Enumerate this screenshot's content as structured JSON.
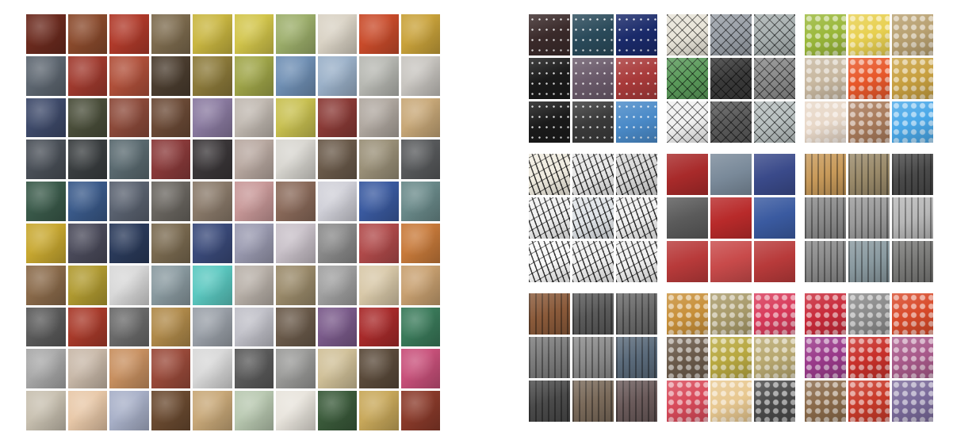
{
  "left_grid": {
    "rows": [
      [
        "#6b2a1e",
        "#8a4a2c",
        "#b03a2a",
        "#7d6b4e",
        "#c9b640",
        "#d2c54a",
        "#9cae6a",
        "#d9d2c4",
        "#c94b2a",
        "#c9a23a"
      ],
      [
        "#5d6670",
        "#a03a2e",
        "#b0503a",
        "#4b3d2f",
        "#8c7a3a",
        "#9fa548",
        "#6f8fb4",
        "#9ab0c8",
        "#b7b8b2",
        "#c8c5c0"
      ],
      [
        "#3e4a6a",
        "#4a4e3a",
        "#8c4a3a",
        "#6b4a36",
        "#8a7aa0",
        "#c0b8b0",
        "#c8c050",
        "#8a3a36",
        "#b0a8a0",
        "#c8a878"
      ],
      [
        "#4a5058",
        "#3a3e40",
        "#5a6a70",
        "#8a3a3a",
        "#3a3638",
        "#b8a8a0",
        "#d8d6d0",
        "#6a5a4a",
        "#9a9078",
        "#585a5c"
      ],
      [
        "#3a5a4a",
        "#3a5a8a",
        "#5a6270",
        "#6a6660",
        "#8a7a6a",
        "#c89898",
        "#8a6a5a",
        "#d0d0d8",
        "#3a5aa0",
        "#6a8a8a"
      ],
      [
        "#c8a830",
        "#4a4a5a",
        "#2a3a5a",
        "#7a6a50",
        "#3a4a7a",
        "#9a9ab0",
        "#c8c0c8",
        "#8a8a8a",
        "#b04a4a",
        "#c87a3a"
      ],
      [
        "#8a6a4a",
        "#b09a30",
        "#d8d8d8",
        "#8a9aa0",
        "#5ac8c0",
        "#b8b0a8",
        "#9a8a6a",
        "#a0a0a0",
        "#d8c8a8",
        "#c8a070"
      ],
      [
        "#5a5a5a",
        "#a83a2a",
        "#6a6a6a",
        "#b08a4a",
        "#9aa0a8",
        "#c0c0c8",
        "#6a5a4a",
        "#7a5a8a",
        "#a82a2a",
        "#3a7a5a"
      ],
      [
        "#a8a8a8",
        "#c8b8a8",
        "#c89060",
        "#9a4a3a",
        "#d8d8d8",
        "#5a5a5a",
        "#9a9a98",
        "#d0c098",
        "#5a4a3a",
        "#c8507a"
      ],
      [
        "#c8c0b0",
        "#e8c8a8",
        "#a8b0c8",
        "#6a4a30",
        "#c8a878",
        "#b8c8b0",
        "#e8e4dc",
        "#3a5a3a",
        "#c8a85a",
        "#8a3a2a"
      ]
    ]
  },
  "right_groups": [
    {
      "tiles": [
        "#3a2a2a",
        "#2a4a5a",
        "#1a2a6a",
        "#1a1a1a",
        "#6a5a6a",
        "#a83a3a",
        "#1a1a1a",
        "#3a3a3a",
        "#4a8ac8"
      ],
      "pattern": "stars"
    },
    {
      "tiles": [
        "#e8e4d8",
        "#9aa0a8",
        "#a8b0b0",
        "#5a9a5a",
        "#3a3a3a",
        "#8a8a8a",
        "#f0f0f0",
        "#5a5a5a",
        "#b8c0c0"
      ],
      "pattern": "mesh"
    },
    {
      "tiles": [
        "#9ab83a",
        "#e8d050",
        "#b8a070",
        "#c8b8a0",
        "#e8582a",
        "#c8a040",
        "#e8d8c8",
        "#a87a5a",
        "#4aa8e8"
      ],
      "pattern": "dots"
    },
    {
      "tiles": [
        "#f0ece0",
        "#e8e8e8",
        "#d8d8d8",
        "#f0f0f0",
        "#e0e4e8",
        "#f0f0f0",
        "#f8f8f8",
        "#f0f0f0",
        "#f0f0f0"
      ],
      "pattern": "branches"
    },
    {
      "tiles": [
        "#a82a2a",
        "#7a8a9a",
        "#3a4a8a",
        "#5a5a5a",
        "#b82a2a",
        "#3a5aa0",
        "#b83a3a",
        "#c84a4a",
        "#b83a3a"
      ],
      "pattern": "none"
    },
    {
      "tiles": [
        "#c89a5a",
        "#9a8a6a",
        "#4a4a4a",
        "#8a8a8a",
        "#9a9a9a",
        "#b8b8b8",
        "#8a8a8a",
        "#8a9aa0",
        "#7a7a78"
      ],
      "pattern": "stripes"
    },
    {
      "tiles": [
        "#8a5a3a",
        "#5a5a5a",
        "#6a6a6a",
        "#7a7a7a",
        "#8a8a8a",
        "#5a6a7a",
        "#4a4a4a",
        "#7a6a5a",
        "#6a5a5a"
      ],
      "pattern": "stripes"
    },
    {
      "tiles": [
        "#c8903a",
        "#a89a6a",
        "#d83a5a",
        "#6a5a4a",
        "#b8a840",
        "#b8a870",
        "#d84a5a",
        "#e8c890",
        "#4a4a4a"
      ],
      "pattern": "dots"
    },
    {
      "tiles": [
        "#c82a3a",
        "#8a8a8a",
        "#d84a2a",
        "#9a3a8a",
        "#c8302a",
        "#a85a8a",
        "#8a6a4a",
        "#c83a2a",
        "#7a6a9a"
      ],
      "pattern": "dots"
    }
  ]
}
